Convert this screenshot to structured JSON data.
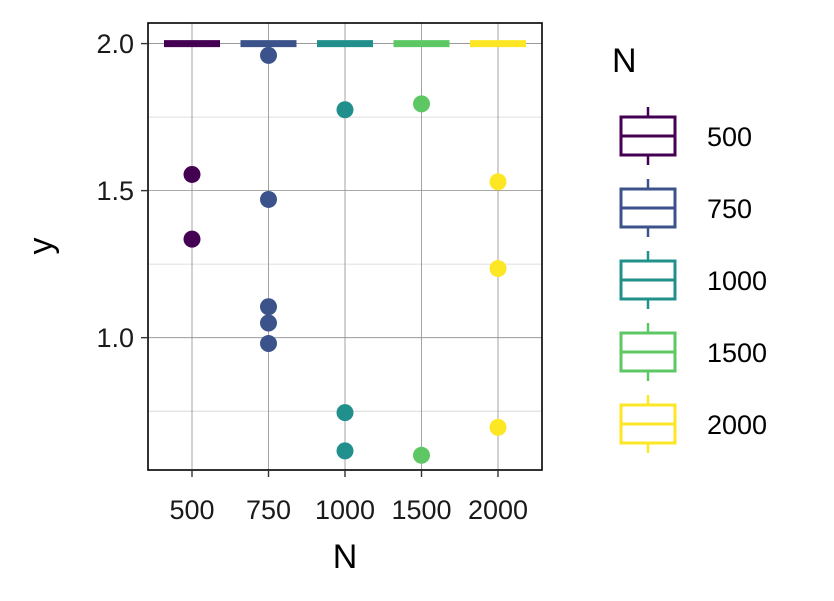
{
  "chart_data": {
    "type": "boxplot",
    "xlabel": "N",
    "ylabel": "y",
    "categories": [
      "500",
      "750",
      "1000",
      "1500",
      "2000"
    ],
    "ylim": [
      0.55,
      2.07
    ],
    "yticks": [
      1.0,
      1.5,
      2.0
    ],
    "ytick_labels": [
      "1.0",
      "1.5",
      "2.0"
    ],
    "grid": true,
    "legend": {
      "title": "N",
      "placement": "right",
      "entries": [
        "500",
        "750",
        "1000",
        "1500",
        "2000"
      ]
    },
    "colors": [
      "#440154",
      "#3B528B",
      "#21908C",
      "#5DC863",
      "#FDE725"
    ],
    "medians": [
      2.0,
      2.0,
      2.0,
      2.0,
      2.0
    ],
    "points": [
      {
        "x": "500",
        "y": 1.555
      },
      {
        "x": "500",
        "y": 1.335
      },
      {
        "x": "750",
        "y": 1.96
      },
      {
        "x": "750",
        "y": 1.47
      },
      {
        "x": "750",
        "y": 1.105
      },
      {
        "x": "750",
        "y": 1.05
      },
      {
        "x": "750",
        "y": 0.98
      },
      {
        "x": "1000",
        "y": 1.775
      },
      {
        "x": "1000",
        "y": 0.745
      },
      {
        "x": "1000",
        "y": 0.615
      },
      {
        "x": "1500",
        "y": 1.795
      },
      {
        "x": "1500",
        "y": 0.6
      },
      {
        "x": "2000",
        "y": 1.53
      },
      {
        "x": "2000",
        "y": 1.235
      },
      {
        "x": "2000",
        "y": 0.695
      }
    ]
  }
}
